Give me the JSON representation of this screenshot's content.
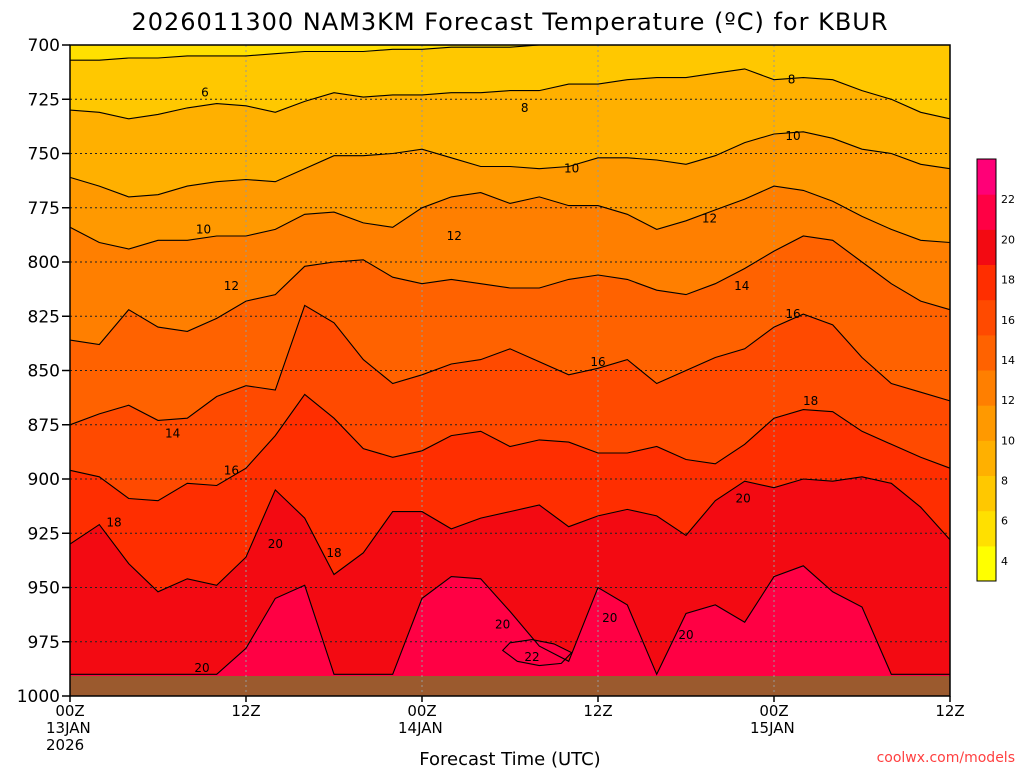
{
  "chart_data": {
    "type": "heatmap",
    "title": "2026011300 NAM3KM Forecast Temperature (ºC) for KBUR",
    "xlabel": "Forecast Time (UTC)",
    "x_ticks": [
      {
        "hour": 0,
        "lines": [
          "00Z",
          "13JAN",
          "2026"
        ]
      },
      {
        "hour": 12,
        "lines": [
          "12Z"
        ]
      },
      {
        "hour": 24,
        "lines": [
          "00Z",
          "14JAN"
        ]
      },
      {
        "hour": 36,
        "lines": [
          "12Z"
        ]
      },
      {
        "hour": 48,
        "lines": [
          "00Z",
          "15JAN"
        ]
      },
      {
        "hour": 60,
        "lines": [
          "12Z"
        ]
      }
    ],
    "xlim": [
      0,
      60
    ],
    "y_ticks": [
      700,
      725,
      750,
      775,
      800,
      825,
      850,
      875,
      900,
      925,
      950,
      975,
      1000
    ],
    "ylim": [
      700,
      1000
    ],
    "y_inverted": true,
    "grid": true,
    "colorbar": {
      "placement": "right",
      "ticks": [
        4,
        6,
        8,
        10,
        12,
        14,
        16,
        18,
        20,
        22
      ],
      "range": [
        3,
        24
      ],
      "colors": [
        "#ffff00",
        "#ffe000",
        "#ffc800",
        "#ffb000",
        "#ff9900",
        "#ff7f00",
        "#ff6200",
        "#ff4a00",
        "#ff2e00",
        "#f30a12",
        "#ff0044",
        "#ff0077"
      ]
    },
    "contour_interval": 2,
    "isotherms": [
      {
        "temp": 6,
        "x": [
          0,
          2,
          4,
          6,
          8,
          10,
          12,
          14,
          16,
          18,
          20,
          22,
          24,
          26,
          28,
          30,
          32,
          34,
          36,
          38,
          40,
          42,
          44,
          46,
          48,
          50,
          52,
          54,
          56,
          58,
          60
        ],
        "p": [
          707,
          707,
          706,
          706,
          705,
          705,
          705,
          704,
          703,
          703,
          703,
          702,
          702,
          701,
          701,
          701,
          700,
          700,
          700,
          700,
          700,
          700,
          700,
          700,
          700,
          700,
          700,
          700,
          700,
          700,
          700
        ]
      },
      {
        "temp": 8,
        "x": [
          0,
          2,
          4,
          6,
          8,
          10,
          12,
          14,
          16,
          18,
          20,
          22,
          24,
          26,
          28,
          30,
          32,
          34,
          36,
          38,
          40,
          42,
          44,
          46,
          48,
          50,
          52,
          54,
          56,
          58,
          60
        ],
        "p": [
          730,
          731,
          734,
          732,
          729,
          727,
          728,
          731,
          726,
          722,
          724,
          723,
          723,
          722,
          722,
          721,
          721,
          718,
          718,
          716,
          715,
          715,
          713,
          711,
          716,
          715,
          716,
          721,
          725,
          731,
          734
        ]
      },
      {
        "temp": 10,
        "x": [
          0,
          2,
          4,
          6,
          8,
          10,
          12,
          14,
          16,
          18,
          20,
          22,
          24,
          26,
          28,
          30,
          32,
          34,
          36,
          38,
          40,
          42,
          44,
          46,
          48,
          50,
          52,
          54,
          56,
          58,
          60
        ],
        "p": [
          761,
          765,
          770,
          769,
          765,
          763,
          762,
          763,
          757,
          751,
          751,
          750,
          748,
          752,
          756,
          756,
          757,
          756,
          752,
          752,
          753,
          755,
          751,
          745,
          741,
          740,
          743,
          748,
          750,
          755,
          757
        ]
      },
      {
        "temp": 12,
        "x": [
          0,
          2,
          4,
          6,
          8,
          10,
          12,
          14,
          16,
          18,
          20,
          22,
          24,
          26,
          28,
          30,
          32,
          34,
          36,
          38,
          40,
          42,
          44,
          46,
          48,
          50,
          52,
          54,
          56,
          58,
          60
        ],
        "p": [
          784,
          791,
          794,
          790,
          790,
          788,
          788,
          785,
          778,
          777,
          782,
          784,
          775,
          770,
          768,
          773,
          770,
          774,
          774,
          778,
          785,
          781,
          776,
          771,
          765,
          767,
          772,
          779,
          785,
          790,
          791
        ]
      },
      {
        "temp": 14,
        "x": [
          0,
          2,
          4,
          6,
          8,
          10,
          12,
          14,
          16,
          18,
          20,
          22,
          24,
          26,
          28,
          30,
          32,
          34,
          36,
          38,
          40,
          42,
          44,
          46,
          48,
          50,
          52,
          54,
          56,
          58,
          60
        ],
        "p": [
          836,
          838,
          822,
          830,
          832,
          826,
          818,
          815,
          802,
          800,
          799,
          807,
          810,
          808,
          810,
          812,
          812,
          808,
          806,
          808,
          813,
          815,
          810,
          803,
          795,
          788,
          790,
          800,
          810,
          818,
          822
        ]
      },
      {
        "temp": 16,
        "x": [
          0,
          2,
          4,
          6,
          8,
          10,
          12,
          14,
          16,
          18,
          20,
          22,
          24,
          26,
          28,
          30,
          32,
          34,
          36,
          38,
          40,
          42,
          44,
          46,
          48,
          50,
          52,
          54,
          56,
          58,
          60
        ],
        "p": [
          875,
          870,
          866,
          873,
          872,
          862,
          857,
          859,
          820,
          828,
          845,
          856,
          852,
          847,
          845,
          840,
          846,
          852,
          849,
          845,
          856,
          850,
          844,
          840,
          830,
          824,
          829,
          844,
          856,
          860,
          864
        ]
      },
      {
        "temp": 18,
        "x": [
          0,
          2,
          4,
          6,
          8,
          10,
          12,
          14,
          16,
          18,
          20,
          22,
          24,
          26,
          28,
          30,
          32,
          34,
          36,
          38,
          40,
          42,
          44,
          46,
          48,
          50,
          52,
          54,
          56,
          58,
          60
        ],
        "p": [
          896,
          899,
          909,
          910,
          902,
          903,
          895,
          880,
          861,
          872,
          886,
          890,
          887,
          880,
          878,
          885,
          882,
          883,
          888,
          888,
          885,
          891,
          893,
          884,
          872,
          868,
          869,
          878,
          884,
          890,
          895
        ]
      },
      {
        "temp": 20,
        "x": [
          0,
          2,
          4,
          6,
          8,
          10,
          12,
          14,
          16,
          18,
          20,
          22,
          24,
          26,
          28,
          30,
          32,
          34,
          36,
          38,
          40,
          42,
          44,
          46,
          48,
          50,
          52,
          54,
          56,
          58,
          60
        ],
        "p": [
          930,
          921,
          939,
          952,
          946,
          949,
          936,
          905,
          918,
          944,
          934,
          915,
          915,
          923,
          918,
          915,
          912,
          922,
          917,
          914,
          917,
          926,
          910,
          901,
          904,
          900,
          901,
          899,
          902,
          913,
          928
        ]
      },
      {
        "temp": 22,
        "x": [
          0,
          2,
          4,
          6,
          8,
          10,
          12,
          14,
          16,
          18,
          20,
          22,
          24,
          26,
          28,
          30,
          32,
          34,
          36,
          38,
          40,
          42,
          44,
          46,
          48,
          50,
          52,
          54,
          56,
          58,
          60
        ],
        "p": [
          990,
          990,
          990,
          990,
          990,
          990,
          978,
          955,
          949,
          990,
          990,
          990,
          955,
          945,
          946,
          961,
          977,
          984,
          950,
          958,
          990,
          962,
          958,
          966,
          945,
          940,
          952,
          959,
          990,
          990,
          990
        ]
      }
    ],
    "warm_pocket": {
      "temp": 22,
      "x": [
        30,
        31.5,
        33,
        34.2,
        33.5,
        32,
        30.5,
        29.5
      ],
      "p": [
        975.5,
        974,
        976,
        980,
        985,
        986,
        984,
        979
      ]
    },
    "labels": [
      {
        "text": "6",
        "hour": 9.2,
        "p": 722
      },
      {
        "text": "8",
        "hour": 31,
        "p": 729
      },
      {
        "text": "8",
        "hour": 49.2,
        "p": 716
      },
      {
        "text": "10",
        "hour": 9.1,
        "p": 785
      },
      {
        "text": "10",
        "hour": 34.2,
        "p": 757
      },
      {
        "text": "10",
        "hour": 49.3,
        "p": 742
      },
      {
        "text": "12",
        "hour": 11,
        "p": 811
      },
      {
        "text": "12",
        "hour": 26.2,
        "p": 788
      },
      {
        "text": "12",
        "hour": 43.6,
        "p": 780
      },
      {
        "text": "14",
        "hour": 7,
        "p": 879
      },
      {
        "text": "14",
        "hour": 45.8,
        "p": 811
      },
      {
        "text": "16",
        "hour": 11,
        "p": 896
      },
      {
        "text": "16",
        "hour": 36,
        "p": 846
      },
      {
        "text": "16",
        "hour": 49.3,
        "p": 824
      },
      {
        "text": "18",
        "hour": 3,
        "p": 920
      },
      {
        "text": "18",
        "hour": 18,
        "p": 934
      },
      {
        "text": "18",
        "hour": 50.5,
        "p": 864
      },
      {
        "text": "20",
        "hour": 14,
        "p": 930
      },
      {
        "text": "20",
        "hour": 29.5,
        "p": 967
      },
      {
        "text": "20",
        "hour": 36.8,
        "p": 964
      },
      {
        "text": "20",
        "hour": 42,
        "p": 972
      },
      {
        "text": "20",
        "hour": 45.9,
        "p": 909
      },
      {
        "text": "20",
        "hour": 9,
        "p": 987
      },
      {
        "text": "22",
        "hour": 31.5,
        "p": 982
      }
    ]
  },
  "credit": "coolwx.com/models"
}
